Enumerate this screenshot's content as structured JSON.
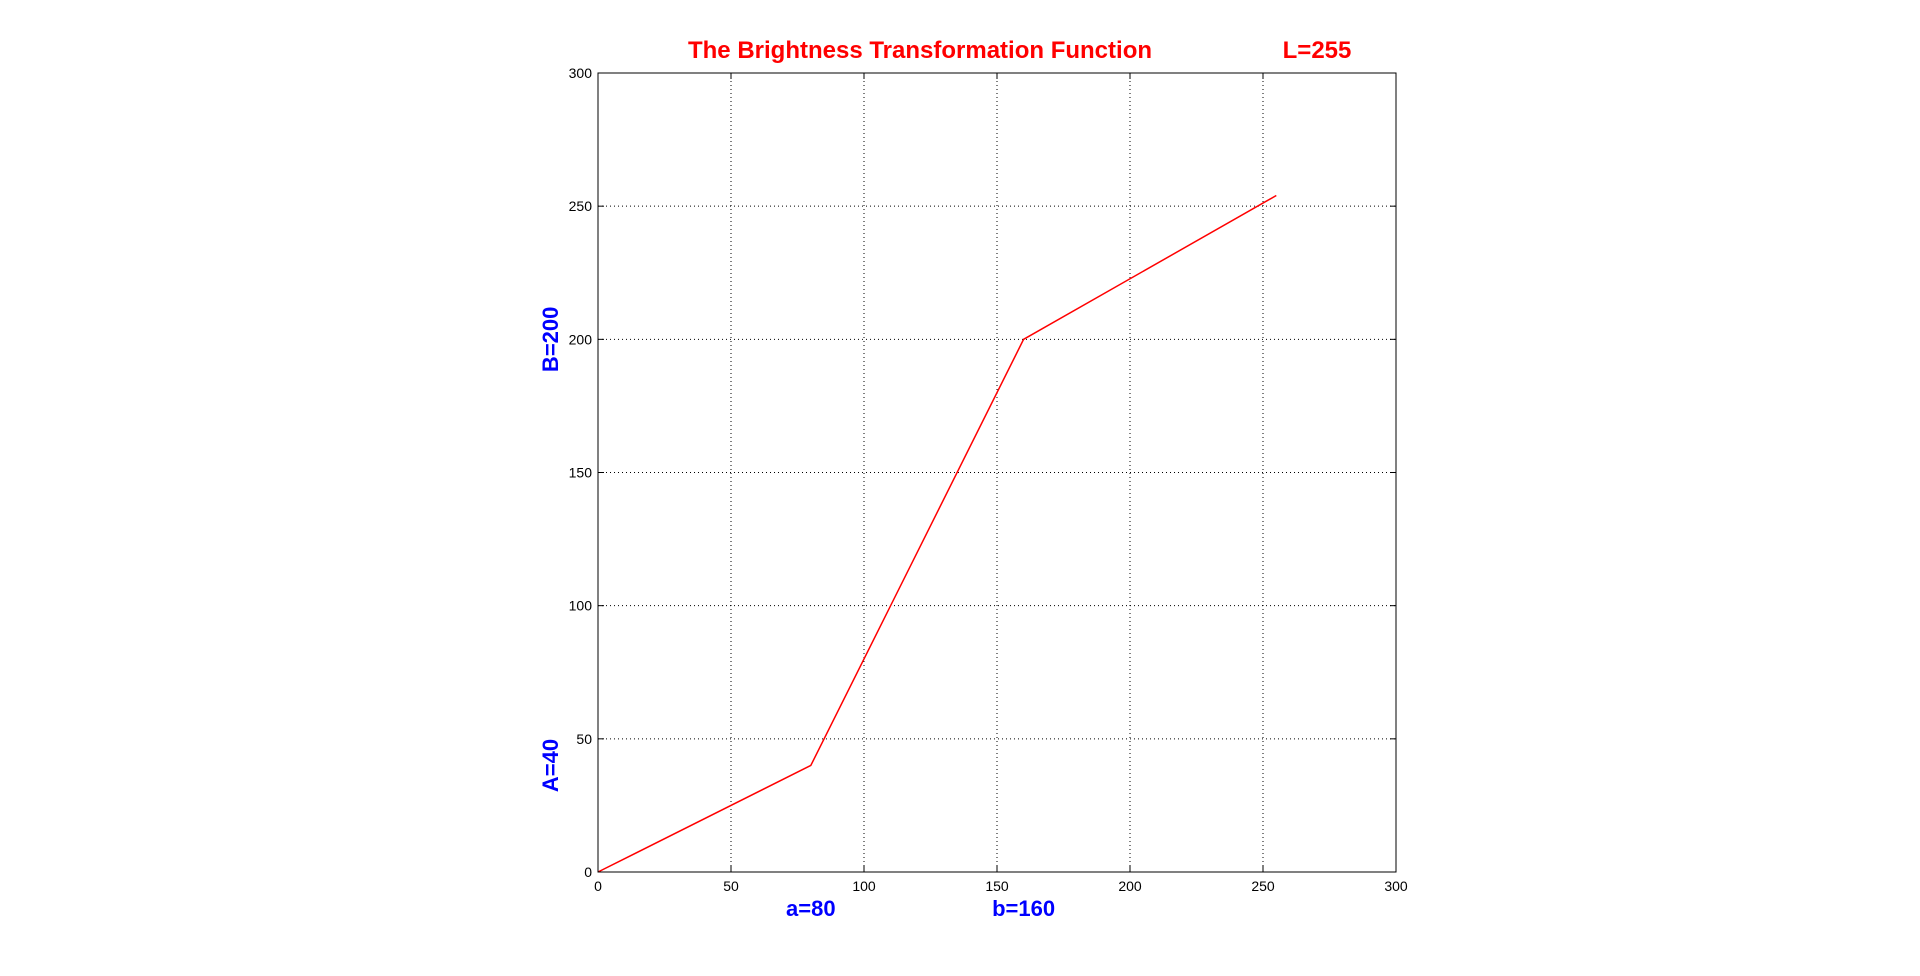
{
  "colors": {
    "line": "#ff0000",
    "title": "#ff0000",
    "annotation": "#0000ff",
    "axes": "#000000",
    "grid": "#000000",
    "background": "#ffffff"
  },
  "chart_data": {
    "type": "line",
    "title": "The Brightness Transformation Function",
    "title_extra": "L=255",
    "xlabel": "",
    "ylabel": "",
    "xlim": [
      0,
      300
    ],
    "ylim": [
      0,
      300
    ],
    "x_ticks": [
      "0",
      "50",
      "100",
      "150",
      "200",
      "250",
      "300"
    ],
    "y_ticks": [
      "0",
      "50",
      "100",
      "150",
      "200",
      "250",
      "300"
    ],
    "grid": true,
    "grid_style": "dotted",
    "legend": "none",
    "series": [
      {
        "x": [
          0,
          80,
          160,
          255
        ],
        "y": [
          0,
          40,
          200,
          254
        ]
      }
    ],
    "annotations": {
      "x_axis": [
        {
          "label": "a=80",
          "value": 80
        },
        {
          "label": "b=160",
          "value": 160
        }
      ],
      "y_axis": [
        {
          "label": "A=40",
          "value": 40
        },
        {
          "label": "B=200",
          "value": 200
        }
      ]
    }
  }
}
